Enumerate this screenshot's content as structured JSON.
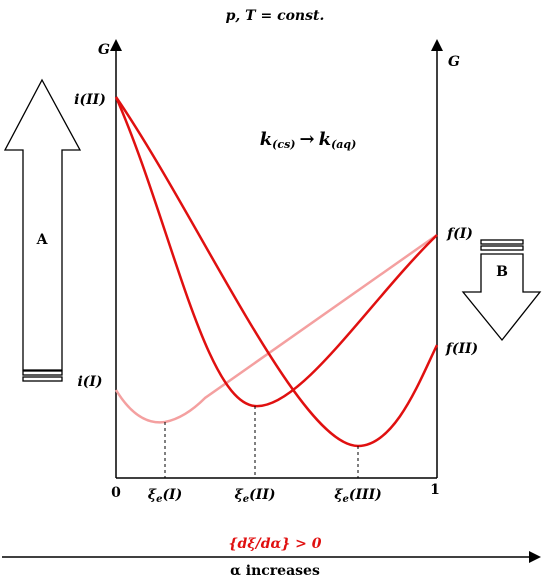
{
  "title": "p, T = const.",
  "axes": {
    "left_label": "G",
    "right_label": "G",
    "origin": "0",
    "end": "1"
  },
  "points": {
    "i_II": "i(II)",
    "i_I": "i(I)",
    "f_I": "f(I)",
    "f_II": "f(II)"
  },
  "reaction": {
    "left": {
      "base": "k",
      "sub": "(cs)"
    },
    "arrow": "→",
    "right": {
      "base": "k",
      "sub": "(aq)"
    }
  },
  "equilibria": [
    {
      "base": "ξ",
      "sub": "e",
      "arg": "(I)"
    },
    {
      "base": "ξ",
      "sub": "e",
      "arg": "(II)"
    },
    {
      "base": "ξ",
      "sub": "e",
      "arg": "(III)"
    }
  ],
  "arrows": {
    "a": "A",
    "b": "B"
  },
  "condition": "{dξ/dα} > 0",
  "progress": "α increases"
}
